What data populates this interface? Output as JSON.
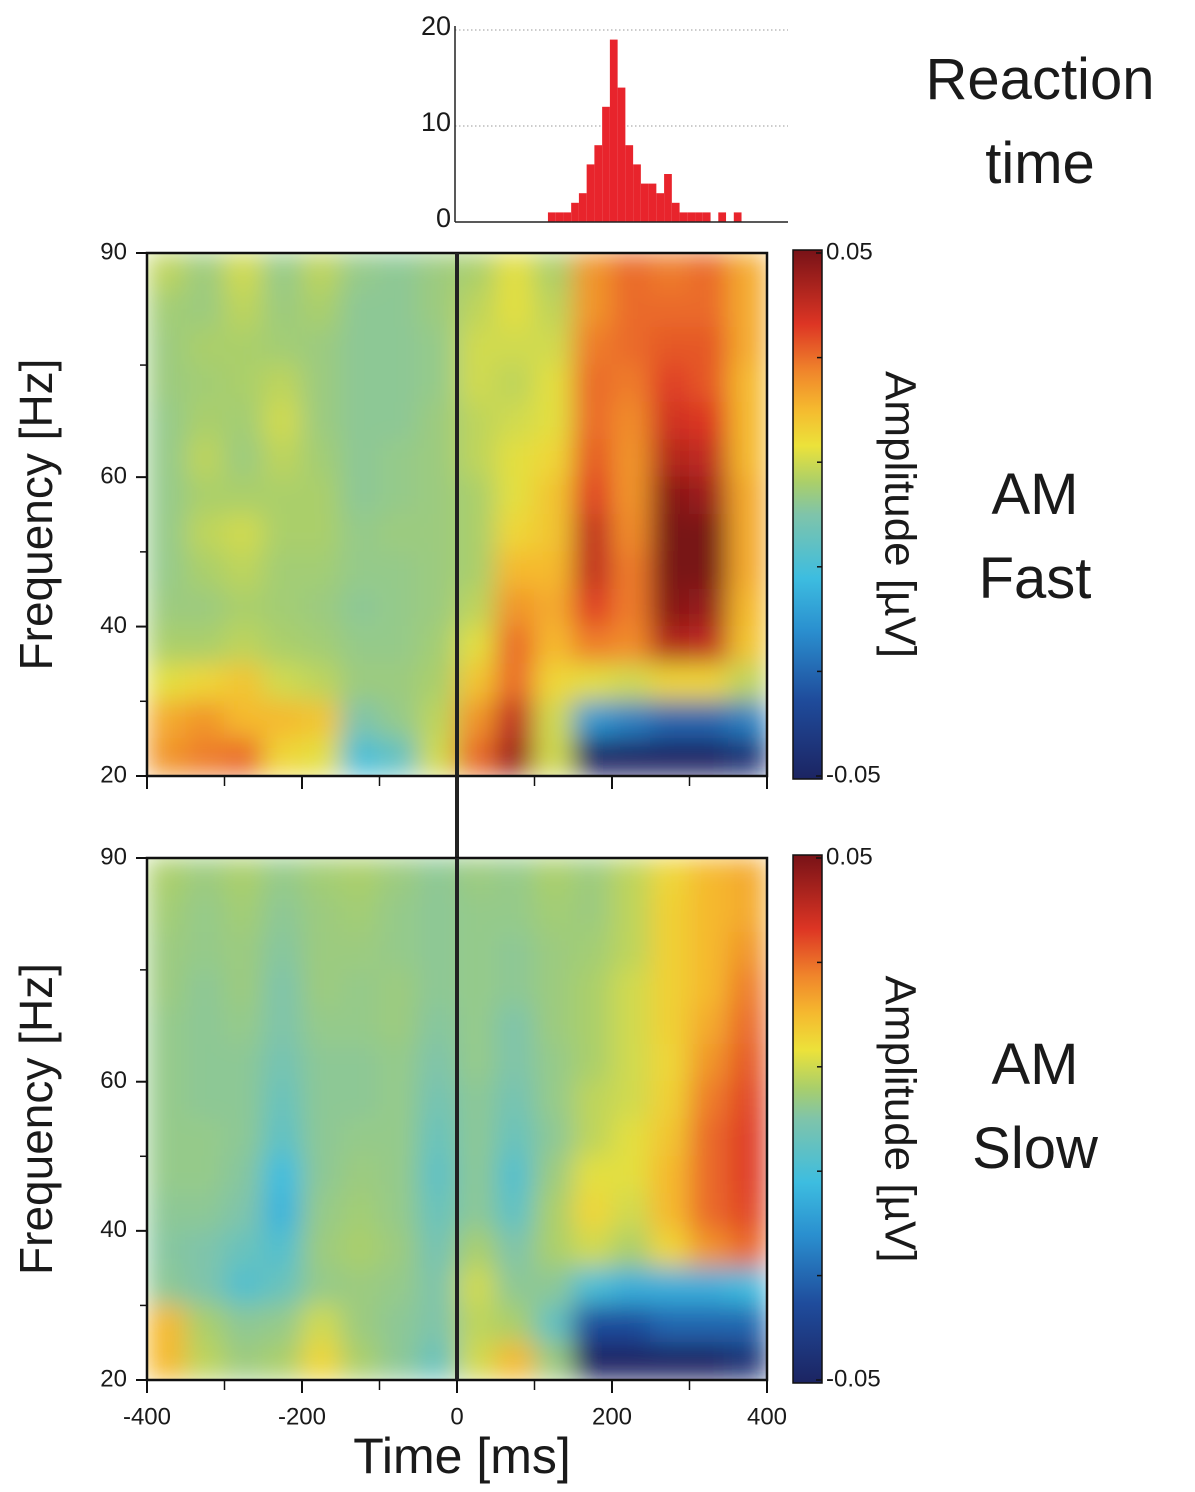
{
  "chart_data": [
    {
      "type": "histogram",
      "title": "Reaction time",
      "color": "#e8242c",
      "bins": [
        120,
        130,
        140,
        150,
        160,
        170,
        180,
        190,
        200,
        210,
        220,
        230,
        240,
        250,
        260,
        270,
        280,
        290,
        300,
        310,
        320,
        330,
        340,
        350,
        360,
        370,
        380,
        390,
        400
      ],
      "values": [
        1,
        1,
        1,
        2,
        3,
        6,
        8,
        12,
        19,
        14,
        8,
        6,
        4,
        4,
        3,
        5,
        2,
        1,
        1,
        1,
        1,
        0,
        1,
        0,
        1,
        0,
        0,
        0
      ],
      "xlim": [
        0,
        430
      ],
      "ylim": [
        0,
        20
      ],
      "yticks": [
        0,
        10,
        20
      ],
      "grid": true
    },
    {
      "type": "heatmap",
      "title": "AM Fast",
      "ylabel": "Frequency [Hz]",
      "colorbar_label": "Amplitude [µV]",
      "x": [
        -375,
        -325,
        -275,
        -225,
        -175,
        -125,
        -75,
        -25,
        25,
        75,
        125,
        175,
        225,
        275,
        325,
        375
      ],
      "y": [
        87.5,
        82.5,
        77.5,
        72.5,
        67.5,
        62.5,
        57.5,
        52.5,
        47.5,
        42.5,
        37.5,
        32.5,
        27.5,
        22.5
      ],
      "values": [
        [
          0.008,
          0.004,
          0.01,
          0.003,
          0.008,
          0.003,
          0.002,
          0.004,
          0.006,
          0.012,
          0.006,
          0.025,
          0.03,
          0.028,
          0.03,
          0.022
        ],
        [
          0.005,
          0.004,
          0.008,
          0.004,
          0.006,
          0.002,
          0.002,
          0.004,
          0.008,
          0.012,
          0.008,
          0.025,
          0.03,
          0.03,
          0.03,
          0.022
        ],
        [
          0.004,
          0.006,
          0.006,
          0.005,
          0.004,
          0.002,
          0.002,
          0.003,
          0.01,
          0.01,
          0.01,
          0.028,
          0.03,
          0.032,
          0.032,
          0.022
        ],
        [
          0.004,
          0.005,
          0.006,
          0.008,
          0.004,
          0.002,
          0.002,
          0.003,
          0.01,
          0.008,
          0.012,
          0.03,
          0.028,
          0.035,
          0.032,
          0.02
        ],
        [
          0.003,
          0.006,
          0.005,
          0.01,
          0.004,
          0.002,
          0.002,
          0.004,
          0.008,
          0.01,
          0.012,
          0.03,
          0.026,
          0.038,
          0.036,
          0.02
        ],
        [
          0.003,
          0.008,
          0.004,
          0.008,
          0.005,
          0.002,
          0.003,
          0.004,
          0.008,
          0.012,
          0.015,
          0.032,
          0.025,
          0.042,
          0.04,
          0.02
        ],
        [
          0.003,
          0.006,
          0.006,
          0.006,
          0.006,
          0.002,
          0.003,
          0.004,
          0.006,
          0.012,
          0.018,
          0.035,
          0.025,
          0.048,
          0.045,
          0.022
        ],
        [
          0.003,
          0.008,
          0.01,
          0.006,
          0.006,
          0.003,
          0.004,
          0.004,
          0.006,
          0.015,
          0.018,
          0.04,
          0.026,
          0.05,
          0.05,
          0.022
        ],
        [
          0.003,
          0.006,
          0.008,
          0.005,
          0.005,
          0.003,
          0.003,
          0.004,
          0.006,
          0.02,
          0.02,
          0.04,
          0.028,
          0.05,
          0.05,
          0.022
        ],
        [
          0.004,
          0.004,
          0.006,
          0.005,
          0.004,
          0.002,
          0.003,
          0.004,
          0.008,
          0.025,
          0.022,
          0.035,
          0.028,
          0.048,
          0.046,
          0.02
        ],
        [
          0.006,
          0.006,
          0.008,
          0.006,
          0.005,
          0.003,
          0.003,
          0.005,
          0.012,
          0.03,
          0.02,
          0.028,
          0.026,
          0.042,
          0.04,
          0.018
        ],
        [
          0.012,
          0.015,
          0.018,
          0.01,
          0.008,
          0.004,
          0.004,
          0.006,
          0.018,
          0.03,
          0.015,
          0.012,
          0.01,
          0.015,
          0.015,
          0.008
        ],
        [
          0.022,
          0.025,
          0.02,
          0.02,
          0.018,
          0.0,
          0.003,
          0.008,
          0.025,
          0.04,
          0.01,
          -0.02,
          -0.025,
          -0.03,
          -0.03,
          -0.025
        ],
        [
          0.025,
          0.028,
          0.03,
          0.015,
          0.012,
          -0.01,
          -0.005,
          0.01,
          0.03,
          0.045,
          0.01,
          -0.05,
          -0.05,
          -0.05,
          -0.05,
          -0.045
        ]
      ],
      "xlim": [
        -400,
        400
      ],
      "ylim": [
        20,
        90
      ],
      "xticks": [
        -400,
        -200,
        0,
        200,
        400
      ],
      "show_xtick_labels": false,
      "yticks": [
        20,
        40,
        60,
        90
      ],
      "clim": [
        -0.05,
        0.05
      ],
      "cticks": [
        -0.05,
        0.05
      ],
      "marker_x": 0,
      "colormap": [
        [
          -0.05,
          "#1c2462"
        ],
        [
          -0.035,
          "#1f4c9c"
        ],
        [
          -0.022,
          "#2a8fcf"
        ],
        [
          -0.012,
          "#3dbde0"
        ],
        [
          0,
          "#7fc4aa"
        ],
        [
          0.006,
          "#aacf6a"
        ],
        [
          0.013,
          "#ece23a"
        ],
        [
          0.02,
          "#f5b92f"
        ],
        [
          0.027,
          "#f0862b"
        ],
        [
          0.036,
          "#dd3524"
        ],
        [
          0.05,
          "#781217"
        ]
      ]
    },
    {
      "type": "heatmap",
      "title": "AM Slow",
      "ylabel": "Frequency [Hz]",
      "xlabel": "Time [ms]",
      "colorbar_label": "Amplitude [µV]",
      "x": [
        -375,
        -325,
        -275,
        -225,
        -175,
        -125,
        -75,
        -25,
        25,
        75,
        125,
        175,
        225,
        275,
        325,
        375
      ],
      "y": [
        87.5,
        82.5,
        77.5,
        72.5,
        67.5,
        62.5,
        57.5,
        52.5,
        47.5,
        42.5,
        37.5,
        32.5,
        27.5,
        22.5
      ],
      "values": [
        [
          0.006,
          0.004,
          0.006,
          0.003,
          0.005,
          0.006,
          0.004,
          0.002,
          0.004,
          0.003,
          0.006,
          0.004,
          0.008,
          0.015,
          0.02,
          0.022
        ],
        [
          0.005,
          0.003,
          0.005,
          0.002,
          0.004,
          0.005,
          0.003,
          0.002,
          0.003,
          0.003,
          0.005,
          0.004,
          0.008,
          0.016,
          0.02,
          0.022
        ],
        [
          0.004,
          0.003,
          0.004,
          0.001,
          0.004,
          0.004,
          0.003,
          0.002,
          0.003,
          0.002,
          0.004,
          0.005,
          0.008,
          0.016,
          0.02,
          0.025
        ],
        [
          0.004,
          0.002,
          0.004,
          0.0,
          0.004,
          0.003,
          0.004,
          0.002,
          0.003,
          0.002,
          0.004,
          0.006,
          0.01,
          0.016,
          0.02,
          0.028
        ],
        [
          0.003,
          0.002,
          0.003,
          0.0,
          0.003,
          0.003,
          0.004,
          0.001,
          0.003,
          0.0,
          0.004,
          0.006,
          0.01,
          0.016,
          0.022,
          0.03
        ],
        [
          0.003,
          0.002,
          0.002,
          -0.002,
          0.002,
          0.002,
          0.003,
          0.0,
          0.003,
          0.0,
          0.003,
          0.006,
          0.01,
          0.015,
          0.025,
          0.032
        ],
        [
          0.003,
          0.002,
          0.002,
          -0.004,
          0.002,
          0.002,
          0.003,
          -0.002,
          0.002,
          -0.002,
          0.003,
          0.008,
          0.01,
          0.016,
          0.028,
          0.034
        ],
        [
          0.003,
          0.003,
          0.002,
          -0.006,
          0.002,
          0.003,
          0.003,
          -0.004,
          0.002,
          -0.004,
          0.002,
          0.008,
          0.012,
          0.018,
          0.03,
          0.035
        ],
        [
          0.003,
          0.003,
          0.001,
          -0.012,
          0.002,
          0.004,
          0.003,
          -0.006,
          0.002,
          -0.008,
          0.004,
          0.012,
          0.012,
          0.02,
          0.03,
          0.035
        ],
        [
          0.002,
          0.002,
          0.0,
          -0.014,
          0.003,
          0.005,
          0.003,
          -0.004,
          0.002,
          -0.006,
          0.006,
          0.015,
          0.01,
          0.02,
          0.03,
          0.034
        ],
        [
          0.001,
          0.0,
          -0.004,
          -0.008,
          0.004,
          0.006,
          0.004,
          -0.002,
          0.006,
          0.0,
          0.006,
          0.01,
          0.006,
          0.015,
          0.025,
          0.03
        ],
        [
          0.002,
          0.0,
          -0.008,
          -0.004,
          0.003,
          0.004,
          0.003,
          0.0,
          0.01,
          0.002,
          0.002,
          -0.01,
          -0.015,
          -0.015,
          -0.015,
          -0.012
        ],
        [
          0.02,
          0.006,
          0.002,
          0.003,
          0.01,
          0.004,
          0.002,
          0.0,
          0.008,
          0.006,
          -0.005,
          -0.035,
          -0.035,
          -0.03,
          -0.03,
          -0.03
        ],
        [
          0.02,
          0.008,
          0.004,
          0.006,
          0.015,
          0.006,
          0.002,
          -0.004,
          0.01,
          0.02,
          0.004,
          -0.05,
          -0.05,
          -0.05,
          -0.05,
          -0.045
        ]
      ],
      "xlim": [
        -400,
        400
      ],
      "ylim": [
        20,
        90
      ],
      "xticks": [
        -400,
        -200,
        0,
        200,
        400
      ],
      "show_xtick_labels": true,
      "yticks": [
        20,
        40,
        60,
        90
      ],
      "clim": [
        -0.05,
        0.05
      ],
      "cticks": [
        -0.05,
        0.05
      ],
      "marker_x": 0,
      "colormap": [
        [
          -0.05,
          "#1c2462"
        ],
        [
          -0.035,
          "#1f4c9c"
        ],
        [
          -0.022,
          "#2a8fcf"
        ],
        [
          -0.012,
          "#3dbde0"
        ],
        [
          0,
          "#7fc4aa"
        ],
        [
          0.006,
          "#aacf6a"
        ],
        [
          0.013,
          "#ece23a"
        ],
        [
          0.02,
          "#f5b92f"
        ],
        [
          0.027,
          "#f0862b"
        ],
        [
          0.036,
          "#dd3524"
        ],
        [
          0.05,
          "#781217"
        ]
      ]
    }
  ]
}
